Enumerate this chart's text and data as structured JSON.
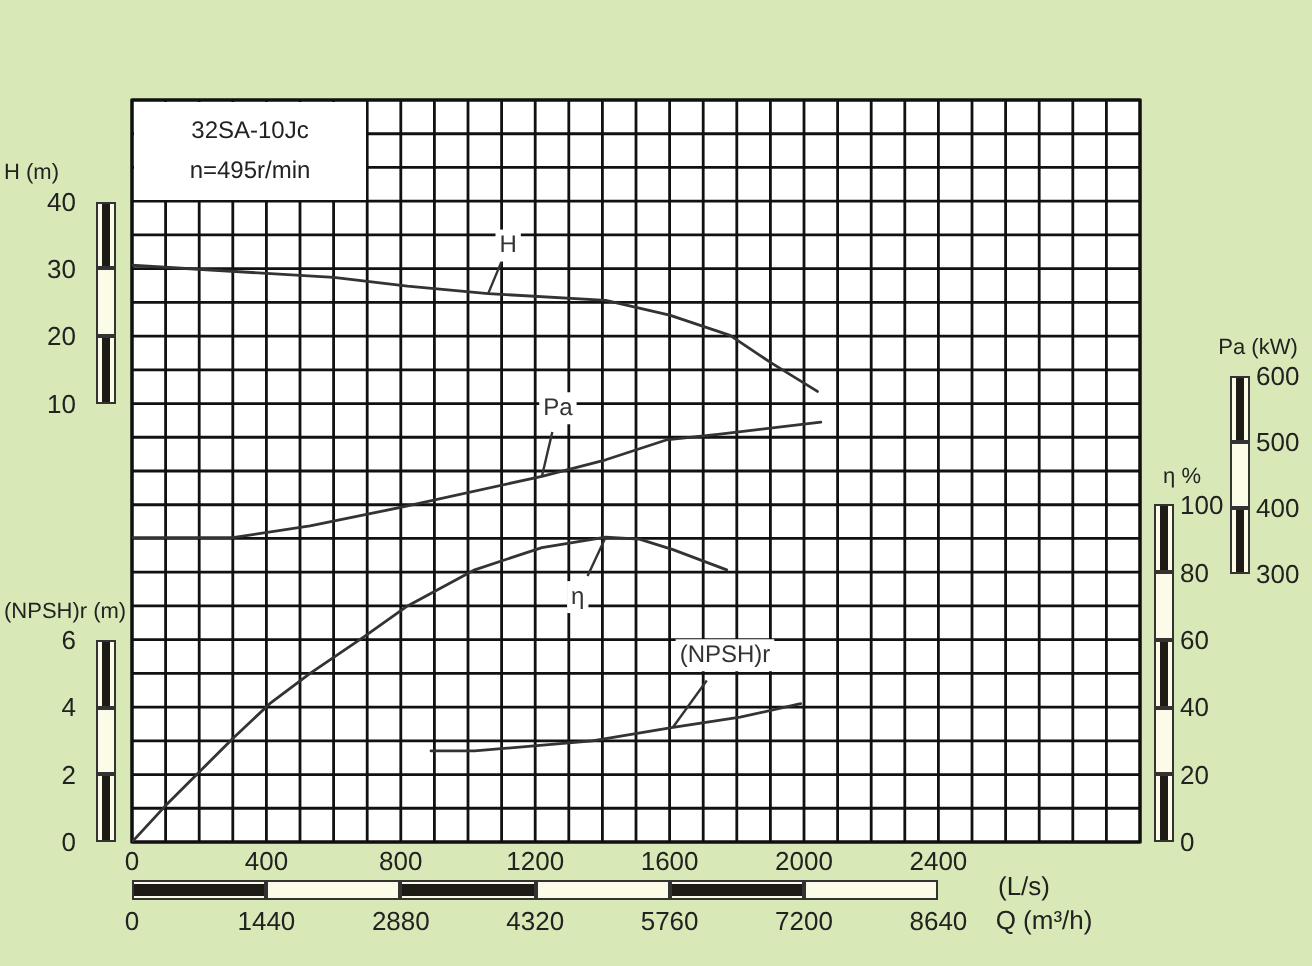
{
  "chart_data": [
    {
      "type": "line",
      "title": "32SA-10Jc",
      "subtitle": "n=495r/min",
      "xlabel": "(L/s)",
      "x2label": "Q (m³/h)",
      "ylabel": "H (m)",
      "y2label": "η %",
      "y3label": "Pa (kW)",
      "xlim": [
        0,
        3000
      ],
      "xticks": [
        0,
        {
          "value": 100,
          "label": null
        },
        {
          "value": 200,
          "label": null
        },
        {
          "value": 300,
          "label": null
        },
        400,
        {
          "value": 500,
          "label": null
        },
        {
          "value": 600,
          "label": null
        },
        {
          "value": 700,
          "label": null
        },
        800,
        {
          "value": 900,
          "label": null
        },
        {
          "value": 1000,
          "label": null
        },
        {
          "value": 1100,
          "label": null
        },
        1200,
        {
          "value": 1300,
          "label": null
        },
        {
          "value": 1400,
          "label": null
        },
        {
          "value": 1500,
          "label": null
        },
        1600,
        {
          "value": 1700,
          "label": null
        },
        {
          "value": 1800,
          "label": null
        },
        {
          "value": 1900,
          "label": null
        },
        2000,
        {
          "value": 2100,
          "label": null
        },
        {
          "value": 2200,
          "label": null
        },
        {
          "value": 2300,
          "label": null
        },
        2400,
        {
          "value": 2500,
          "label": null
        },
        {
          "value": 2600,
          "label": null
        },
        {
          "value": 2700,
          "label": null
        },
        {
          "value": 2800,
          "label": null
        },
        {
          "value": 2900,
          "label": null
        },
        {
          "value": 3000,
          "label": null
        }
      ],
      "x2lim": [
        0,
        10800
      ],
      "x2ticks": [
        0,
        1440,
        2880,
        4320,
        5760,
        7200,
        8640
      ],
      "ylim": [
        -55,
        55
      ],
      "yticks": [
        {
          "value": -55,
          "label": null
        },
        {
          "value": -50,
          "label": null
        },
        {
          "value": -45,
          "label": null
        },
        {
          "value": -40,
          "label": null
        },
        {
          "value": -35,
          "label": null
        },
        {
          "value": -30,
          "label": null
        },
        {
          "value": -25,
          "label": null
        },
        {
          "value": -20,
          "label": null
        },
        {
          "value": -15,
          "label": null
        },
        {
          "value": -10,
          "label": null
        },
        {
          "value": -5,
          "label": null
        },
        {
          "value": 0,
          "label": null
        },
        {
          "value": 5,
          "label": null
        },
        10,
        {
          "value": 15,
          "label": null
        },
        20,
        {
          "value": 25,
          "label": null
        },
        30,
        {
          "value": 35,
          "label": null
        },
        40,
        {
          "value": 45,
          "label": null
        },
        {
          "value": 50,
          "label": null
        },
        {
          "value": 55,
          "label": null
        }
      ],
      "y2lim": [
        0,
        220
      ],
      "y2ticks": [
        0,
        20,
        40,
        60,
        80,
        100
      ],
      "y3lim": [
        -106,
        1018
      ],
      "y3ticks": [
        300,
        400,
        500,
        600
      ],
      "grid": true,
      "marker": "none",
      "line_style": "solid",
      "series": [
        {
          "name": "H",
          "color": "#333333",
          "x": [
            0,
            600,
            820,
            1060,
            1410,
            1600,
            1780,
            1900,
            2040
          ],
          "values": [
            30.5,
            28.7,
            27.4,
            26.3,
            25.3,
            23.1,
            20.1,
            16.1,
            11.8
          ]
        },
        {
          "name": "Pa",
          "color": "#333333",
          "axis": "y3",
          "x": [
            0,
            300,
            530,
            820,
            1220,
            1410,
            1590,
            1750,
            2050
          ],
          "values": [
            355,
            355,
            373,
            403,
            448,
            473,
            503,
            512,
            530
          ]
        },
        {
          "name": "η",
          "color": "#333333",
          "axis": "y2",
          "x": [
            0,
            100,
            300,
            410,
            530,
            690,
            820,
            1020,
            1220,
            1410,
            1510,
            1610,
            1770
          ],
          "values": [
            0,
            10.8,
            30.7,
            41,
            50,
            60.8,
            70,
            80.7,
            87.3,
            90.4,
            89.8,
            86.7,
            80.7
          ]
        }
      ]
    },
    {
      "type": "line",
      "ylabel": "(NPSH)r (m)",
      "xlim": [
        0,
        3000
      ],
      "ylim": [
        0,
        22
      ],
      "yticks": [
        0,
        2,
        4,
        6
      ],
      "tick_labels": "y",
      "marker": "none",
      "line_style": "solid",
      "series": [
        {
          "name": "(NPSH)r",
          "color": "#333333",
          "x": [
            890,
            1020,
            1370,
            1610,
            1810,
            1990
          ],
          "values": [
            2.7,
            2.7,
            3.0,
            3.4,
            3.7,
            4.1
          ]
        }
      ]
    }
  ]
}
